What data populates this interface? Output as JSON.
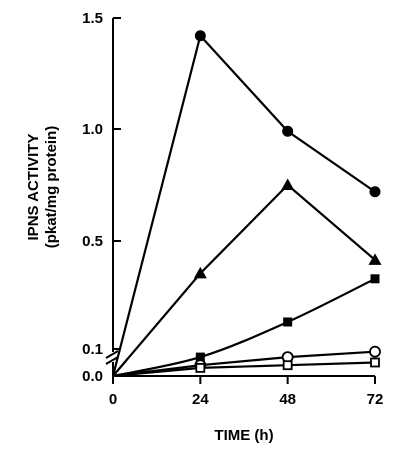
{
  "chart_data": {
    "type": "line",
    "title": "",
    "xlabel": "TIME (h)",
    "ylabel_line1": "IPNS ACTIVITY",
    "ylabel_line2": "(pkat/mg protein)",
    "xlim": [
      0,
      72
    ],
    "ylim": [
      0,
      1.5
    ],
    "x_ticks": [
      0,
      24,
      48,
      72
    ],
    "y_ticks": [
      0.0,
      0.1,
      0.5,
      1.0,
      1.5
    ],
    "y_tick_labels": [
      "0.0",
      "0.1",
      "0.5",
      "1.0",
      "1.5"
    ],
    "y_axis_break": true,
    "grid": false,
    "legend": "none",
    "series": [
      {
        "marker": "filled-circle",
        "x": [
          0,
          24,
          48,
          72
        ],
        "y": [
          0,
          1.42,
          0.99,
          0.72
        ]
      },
      {
        "marker": "filled-triangle",
        "x": [
          0,
          24,
          48,
          72
        ],
        "y": [
          0,
          0.38,
          0.75,
          0.43
        ]
      },
      {
        "marker": "filled-square",
        "x": [
          0,
          24,
          48,
          72
        ],
        "y": [
          0,
          0.07,
          0.2,
          0.36
        ]
      },
      {
        "marker": "open-circle",
        "x": [
          0,
          24,
          48,
          72
        ],
        "y": [
          0,
          0.04,
          0.07,
          0.09
        ]
      },
      {
        "marker": "open-square",
        "x": [
          0,
          24,
          48,
          72
        ],
        "y": [
          0,
          0.03,
          0.04,
          0.05
        ]
      }
    ]
  }
}
